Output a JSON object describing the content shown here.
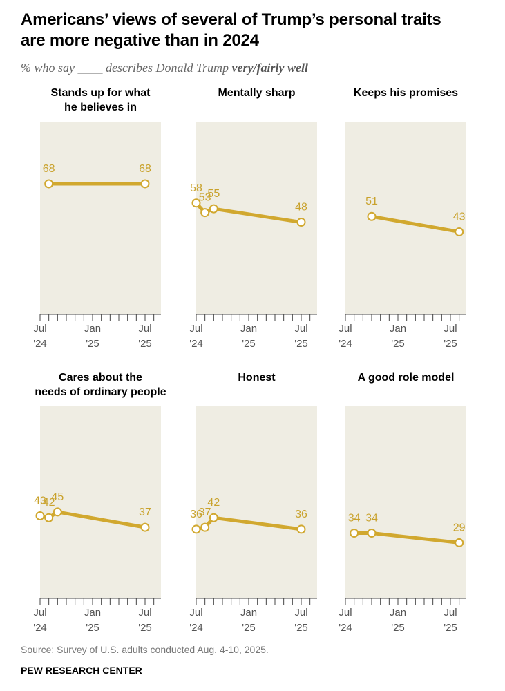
{
  "title_line1": "Americans’ views of several of Trump’s personal traits",
  "title_line2": "are more negative than in 2024",
  "subtitle_prefix": "% who say ____ describes Donald Trump ",
  "subtitle_emph": "very/fairly well",
  "source": "Source: Survey of U.S. adults conducted Aug. 4-10, 2025.",
  "brand": "PEW RESEARCH CENTER",
  "colors": {
    "line": "#d1a82f",
    "label": "#c9a22c",
    "panel_bg": "#efede3",
    "axis": "#444444"
  },
  "chart_data": [
    {
      "type": "line",
      "title": [
        "Stands up for what",
        "he believes in"
      ],
      "x": [
        "Aug 2024",
        "Jul 2025"
      ],
      "values": [
        68,
        68
      ],
      "xticks": [
        "Jul '24",
        "Jan '25",
        "Jul '25"
      ],
      "ylim": [
        0,
        100
      ]
    },
    {
      "type": "line",
      "title": [
        "Mentally sharp"
      ],
      "x": [
        "Jul 2024",
        "Aug 2024",
        "Sep 2024",
        "Jul 2025"
      ],
      "values": [
        58,
        53,
        55,
        48
      ],
      "xticks": [
        "Jul '24",
        "Jan '25",
        "Jul '25"
      ],
      "ylim": [
        0,
        100
      ]
    },
    {
      "type": "line",
      "title": [
        "Keeps his promises"
      ],
      "x": [
        "Oct 2024",
        "Aug 2025"
      ],
      "values": [
        51,
        43
      ],
      "xticks": [
        "Jul '24",
        "Jan '25",
        "Jul '25"
      ],
      "ylim": [
        0,
        100
      ]
    },
    {
      "type": "line",
      "title": [
        "Cares about the",
        "needs of ordinary people"
      ],
      "x": [
        "Jul 2024",
        "Aug 2024",
        "Sep 2024",
        "Jul 2025"
      ],
      "values": [
        43,
        42,
        45,
        37
      ],
      "xticks": [
        "Jul '24",
        "Jan '25",
        "Jul '25"
      ],
      "ylim": [
        0,
        100
      ]
    },
    {
      "type": "line",
      "title": [
        "Honest"
      ],
      "x": [
        "Jul 2024",
        "Aug 2024",
        "Sep 2024",
        "Jul 2025"
      ],
      "values": [
        36,
        37,
        42,
        36
      ],
      "xticks": [
        "Jul '24",
        "Jan '25",
        "Jul '25"
      ],
      "ylim": [
        0,
        100
      ]
    },
    {
      "type": "line",
      "title": [
        "A good role model"
      ],
      "x": [
        "Aug 2024",
        "Oct 2024",
        "Aug 2025"
      ],
      "values": [
        34,
        34,
        29
      ],
      "xticks": [
        "Jul '24",
        "Jan '25",
        "Jul '25"
      ],
      "ylim": [
        0,
        100
      ]
    }
  ]
}
